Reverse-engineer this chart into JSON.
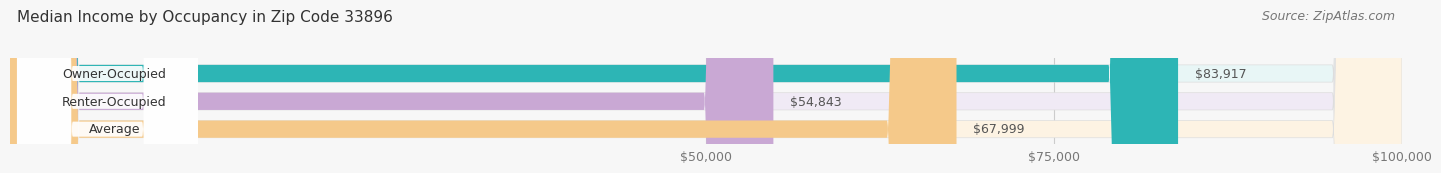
{
  "title": "Median Income by Occupancy in Zip Code 33896",
  "source": "Source: ZipAtlas.com",
  "categories": [
    "Owner-Occupied",
    "Renter-Occupied",
    "Average"
  ],
  "values": [
    83917,
    54843,
    67999
  ],
  "labels": [
    "$83,917",
    "$54,843",
    "$67,999"
  ],
  "bar_colors": [
    "#2db5b5",
    "#c9a8d4",
    "#f5c98a"
  ],
  "bar_bg_colors": [
    "#e8f6f6",
    "#f0eaf5",
    "#fdf3e3"
  ],
  "xlim": [
    0,
    100000
  ],
  "xticks": [
    50000,
    75000,
    100000
  ],
  "xtick_labels": [
    "$50,000",
    "$75,000",
    "$100,000"
  ],
  "bar_height": 0.62,
  "title_fontsize": 11,
  "label_fontsize": 9,
  "tick_fontsize": 9,
  "source_fontsize": 9,
  "category_fontsize": 9,
  "figure_bg": "#f7f7f7",
  "axes_bg": "#f7f7f7"
}
